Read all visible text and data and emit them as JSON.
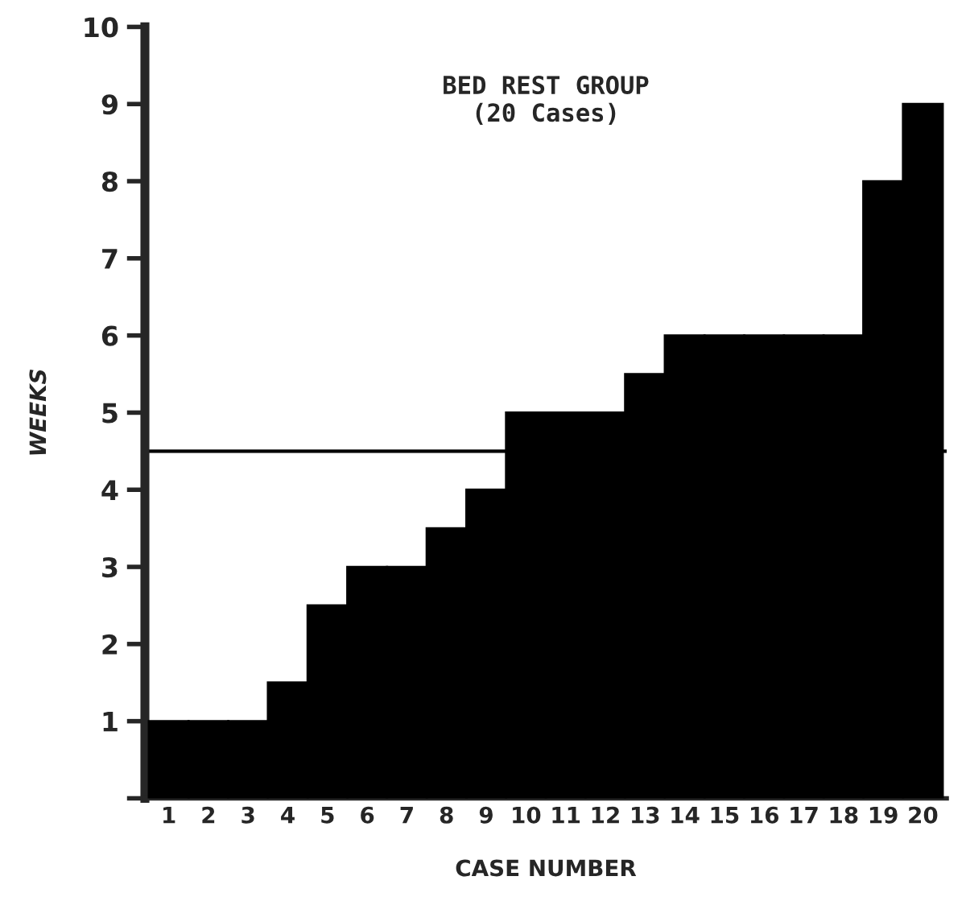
{
  "chart_data": {
    "type": "bar",
    "title": "BED REST GROUP\n(20 Cases)",
    "xlabel": "CASE NUMBER",
    "ylabel": "WEEKS",
    "categories": [
      "1",
      "2",
      "3",
      "4",
      "5",
      "6",
      "7",
      "8",
      "9",
      "10",
      "11",
      "12",
      "13",
      "14",
      "15",
      "16",
      "17",
      "18",
      "19",
      "20"
    ],
    "values": [
      1,
      1,
      1,
      1.5,
      2.5,
      3,
      3,
      3.5,
      4,
      5,
      5,
      5,
      5.5,
      6,
      6,
      6,
      6,
      6,
      8,
      9
    ],
    "color": "#000000",
    "ylim": [
      0,
      10
    ],
    "yticks": [
      {
        "value": 0,
        "label": null
      },
      1,
      2,
      3,
      4,
      5,
      6,
      7,
      8,
      9,
      10
    ],
    "ref_lines": [
      {
        "axis": "y",
        "value": 4.5,
        "color": "#000000"
      }
    ],
    "grid": false,
    "legend": false
  }
}
